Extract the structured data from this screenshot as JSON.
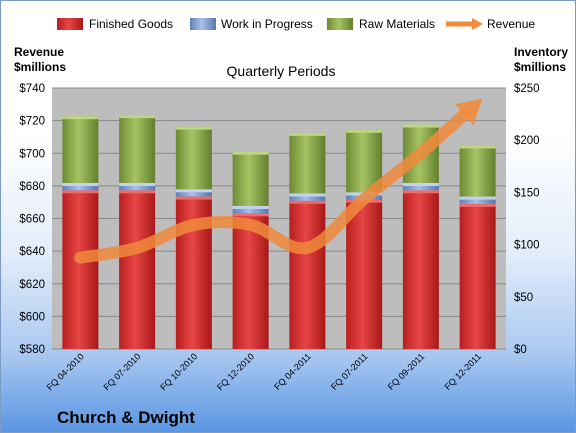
{
  "chart_data": {
    "type": "bar",
    "stacked": true,
    "title": "Quarterly Periods",
    "footer": "Church & Dwight",
    "categories": [
      "FQ 04-2010",
      "FQ 07-2010",
      "FQ 10-2010",
      "FQ 12-2010",
      "FQ 04-2011",
      "FQ 07-2011",
      "FQ 09-2011",
      "FQ 12-2011"
    ],
    "left_axis": {
      "label_line1": "Revenue",
      "label_line2": "$millions",
      "ylim": [
        580,
        740
      ],
      "ticks": [
        "$580",
        "$600",
        "$620",
        "$640",
        "$660",
        "$680",
        "$700",
        "$720",
        "$740"
      ]
    },
    "right_axis": {
      "label_line1": "Inventory",
      "label_line2": "$millions",
      "ylim": [
        0,
        250
      ],
      "ticks": [
        "$0",
        "$50",
        "$100",
        "$150",
        "$200",
        "$250"
      ]
    },
    "series": [
      {
        "name": "Finished Goods",
        "axis": "right",
        "kind": "bar",
        "color": "#e03a3a",
        "values": [
          152,
          152,
          146,
          130,
          142,
          143,
          152,
          139
        ]
      },
      {
        "name": "Work in Progress",
        "axis": "right",
        "kind": "bar",
        "color": "#7e9fd4",
        "values": [
          7,
          7,
          7,
          7,
          7,
          7,
          7,
          7
        ]
      },
      {
        "name": "Raw Materials",
        "axis": "right",
        "kind": "bar",
        "color": "#92b050",
        "values": [
          64,
          65,
          60,
          52,
          58,
          60,
          56,
          49
        ]
      },
      {
        "name": "Revenue",
        "axis": "left",
        "kind": "line",
        "color": "#f08a3c",
        "values": [
          636,
          642,
          656,
          656,
          642,
          672,
          700,
          731
        ]
      }
    ],
    "grid": true,
    "legend": "top"
  }
}
